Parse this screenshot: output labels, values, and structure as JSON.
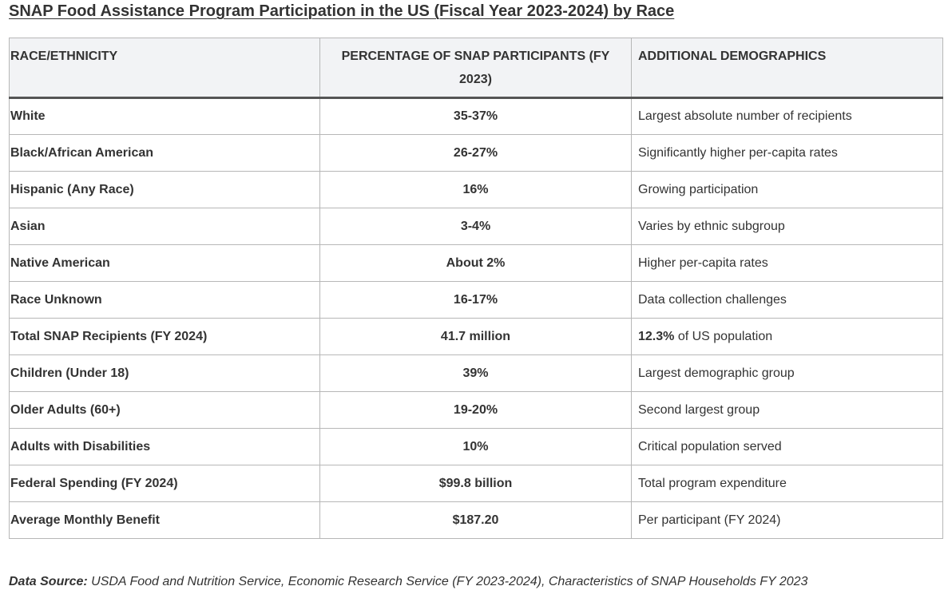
{
  "title": "SNAP Food Assistance Program Participation in the US (Fiscal Year 2023-2024) by Race",
  "table": {
    "headers": [
      "RACE/ETHNICITY",
      "PERCENTAGE OF SNAP PARTICIPANTS (FY 2023)",
      "ADDITIONAL DEMOGRAPHICS"
    ],
    "rows": [
      {
        "category": "White",
        "value": "35-37%",
        "note_bold": "",
        "note": "Largest absolute number of recipients"
      },
      {
        "category": "Black/African American",
        "value": "26-27%",
        "note_bold": "",
        "note": "Significantly higher per-capita rates"
      },
      {
        "category": "Hispanic (Any Race)",
        "value": "16%",
        "note_bold": "",
        "note": "Growing participation"
      },
      {
        "category": "Asian",
        "value": "3-4%",
        "note_bold": "",
        "note": "Varies by ethnic subgroup"
      },
      {
        "category": "Native American",
        "value": "About 2%",
        "note_bold": "",
        "note": "Higher per-capita rates"
      },
      {
        "category": "Race Unknown",
        "value": "16-17%",
        "note_bold": "",
        "note": "Data collection challenges"
      },
      {
        "category": "Total SNAP Recipients (FY 2024)",
        "value": "41.7 million",
        "note_bold": "12.3%",
        "note": " of US population"
      },
      {
        "category": "Children (Under 18)",
        "value": "39%",
        "note_bold": "",
        "note": "Largest demographic group"
      },
      {
        "category": "Older Adults (60+)",
        "value": "19-20%",
        "note_bold": "",
        "note": "Second largest group"
      },
      {
        "category": "Adults with Disabilities",
        "value": "10%",
        "note_bold": "",
        "note": "Critical population served"
      },
      {
        "category": "Federal Spending (FY 2024)",
        "value": "$99.8 billion",
        "note_bold": "",
        "note": "Total program expenditure"
      },
      {
        "category": "Average Monthly Benefit",
        "value": "$187.20",
        "note_bold": "",
        "note": "Per participant (FY 2024)"
      }
    ]
  },
  "source": {
    "label": "Data Source:",
    "text": " USDA Food and Nutrition Service, Economic Research Service (FY 2023-2024), Characteristics of SNAP Households FY 2023"
  }
}
